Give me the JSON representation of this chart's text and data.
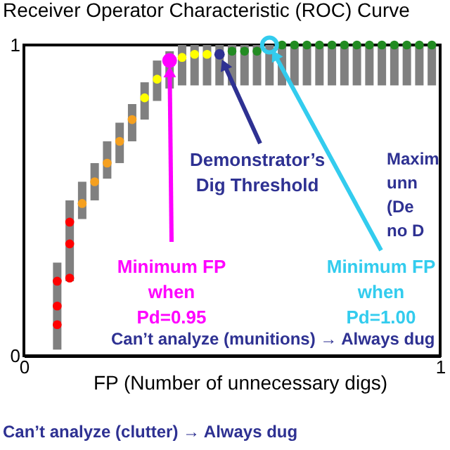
{
  "chart_data": {
    "type": "scatter",
    "title": "Receiver Operator Characteristic (ROC) Curve",
    "xlabel": "FP (Number of unnecessary digs)",
    "xlim": [
      0,
      1
    ],
    "xticks": [
      0,
      1
    ],
    "ylim": [
      0,
      1
    ],
    "yticks": [
      0,
      1
    ],
    "grid": false,
    "marker": "circle",
    "series": [
      {
        "type": "bar",
        "color": "#808080",
        "x": [
          0.08,
          0.11,
          0.14,
          0.17,
          0.2,
          0.23,
          0.26,
          0.29,
          0.32,
          0.35,
          0.38,
          0.41,
          0.44,
          0.47,
          0.5,
          0.53,
          0.56,
          0.59,
          0.62,
          0.65,
          0.68,
          0.71,
          0.74,
          0.77,
          0.8,
          0.83,
          0.86,
          0.89,
          0.92,
          0.95,
          0.98
        ],
        "base": [
          0.02,
          0.24,
          0.44,
          0.5,
          0.57,
          0.62,
          0.69,
          0.76,
          0.82,
          0.86,
          0.87,
          0.87,
          0.87,
          0.87,
          0.87,
          0.87,
          0.87,
          0.87,
          0.87,
          0.87,
          0.87,
          0.87,
          0.87,
          0.87,
          0.87,
          0.87,
          0.87,
          0.87,
          0.87,
          0.87,
          0.87
        ],
        "values": [
          0.28,
          0.26,
          0.12,
          0.12,
          0.12,
          0.13,
          0.12,
          0.12,
          0.13,
          0.12,
          0.13,
          0.13,
          0.13,
          0.13,
          0.13,
          0.13,
          0.13,
          0.13,
          0.13,
          0.13,
          0.13,
          0.13,
          0.13,
          0.13,
          0.13,
          0.13,
          0.13,
          0.13,
          0.13,
          0.13,
          0.13
        ]
      },
      {
        "color": "#ff0000",
        "x": [
          0.08,
          0.08,
          0.08,
          0.11,
          0.11,
          0.11
        ],
        "values": [
          0.24,
          0.16,
          0.1,
          0.43,
          0.36,
          0.25
        ]
      },
      {
        "color": "#f5a020",
        "x": [
          0.14,
          0.17,
          0.2,
          0.23,
          0.26
        ],
        "values": [
          0.49,
          0.56,
          0.62,
          0.69,
          0.76
        ]
      },
      {
        "color": "#ffff00",
        "x": [
          0.29,
          0.32,
          0.38,
          0.41,
          0.44
        ],
        "values": [
          0.83,
          0.89,
          0.96,
          0.97,
          0.97
        ]
      },
      {
        "color": "#228b22",
        "x": [
          0.5,
          0.53,
          0.56,
          0.62,
          0.65,
          0.68,
          0.71,
          0.74,
          0.77,
          0.8,
          0.83,
          0.86,
          0.89,
          0.92,
          0.95,
          0.98
        ],
        "values": [
          0.98,
          0.98,
          0.98,
          1,
          1,
          1,
          1,
          1,
          1,
          1,
          1,
          1,
          1,
          1,
          1,
          1
        ]
      },
      {
        "color": "#ff00ff",
        "x": [
          0.35
        ],
        "values": [
          0.95
        ]
      },
      {
        "color": "#2e3192",
        "x": [
          0.47
        ],
        "values": [
          0.97
        ]
      },
      {
        "color": "#33ccee",
        "x": [
          0.59
        ],
        "values": [
          1
        ]
      }
    ],
    "annotations": [
      {
        "text": "Demonstrator’s\nDig Threshold",
        "x": 0.47,
        "y": 0.97
      },
      "Maxim\nunn\n(De\nno D",
      {
        "text": "Minimum FP\nwhen\nPd=0.95",
        "x": 0.35,
        "y": 0.95
      },
      {
        "text": "Minimum FP\nwhen\nPd=1.00",
        "x": 0.59,
        "y": 1
      },
      "Can’t analyze (munitions) → Always dug",
      "Can’t analyze (clutter) → Always dug"
    ]
  }
}
